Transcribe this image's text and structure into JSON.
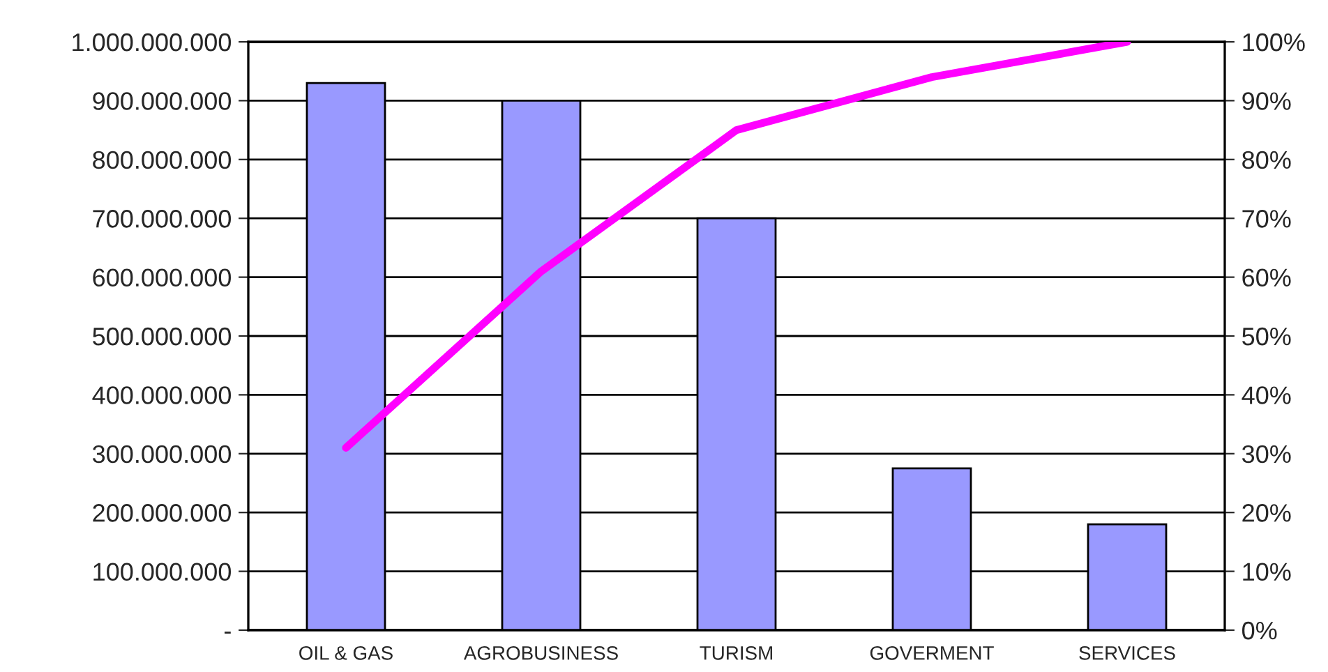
{
  "chart_data": {
    "type": "bar",
    "categories": [
      "OIL & GAS",
      "AGROBUSINESS",
      "TURISM",
      "GOVERMENT",
      "SERVICES"
    ],
    "series": [
      {
        "color": "#9999ff",
        "values": [
          930000000,
          900000000,
          700000000,
          275000000,
          180000000
        ]
      },
      {
        "type": "line",
        "axis": "y2",
        "color": "#ff00ff",
        "values": [
          31,
          61,
          85,
          94,
          100
        ]
      }
    ],
    "ylim": [
      0,
      1000000000
    ],
    "yticks": [
      {
        "value": 0,
        "label": "-"
      },
      {
        "value": 100000000,
        "label": "100.000.000"
      },
      {
        "value": 200000000,
        "label": "200.000.000"
      },
      {
        "value": 300000000,
        "label": "300.000.000"
      },
      {
        "value": 400000000,
        "label": "400.000.000"
      },
      {
        "value": 500000000,
        "label": "500.000.000"
      },
      {
        "value": 600000000,
        "label": "600.000.000"
      },
      {
        "value": 700000000,
        "label": "700.000.000"
      },
      {
        "value": 800000000,
        "label": "800.000.000"
      },
      {
        "value": 900000000,
        "label": "900.000.000"
      },
      {
        "value": 1000000000,
        "label": "1.000.000.000"
      }
    ],
    "y2lim": [
      0,
      100
    ],
    "y2ticks": [
      {
        "value": 0,
        "label": "0%"
      },
      {
        "value": 10,
        "label": "10%"
      },
      {
        "value": 20,
        "label": "20%"
      },
      {
        "value": 30,
        "label": "30%"
      },
      {
        "value": 40,
        "label": "40%"
      },
      {
        "value": 50,
        "label": "50%"
      },
      {
        "value": 60,
        "label": "60%"
      },
      {
        "value": 70,
        "label": "70%"
      },
      {
        "value": 80,
        "label": "80%"
      },
      {
        "value": 90,
        "label": "90%"
      },
      {
        "value": 100,
        "label": "100%"
      }
    ],
    "grid": "y",
    "marker": "none",
    "line_style": "solid"
  }
}
